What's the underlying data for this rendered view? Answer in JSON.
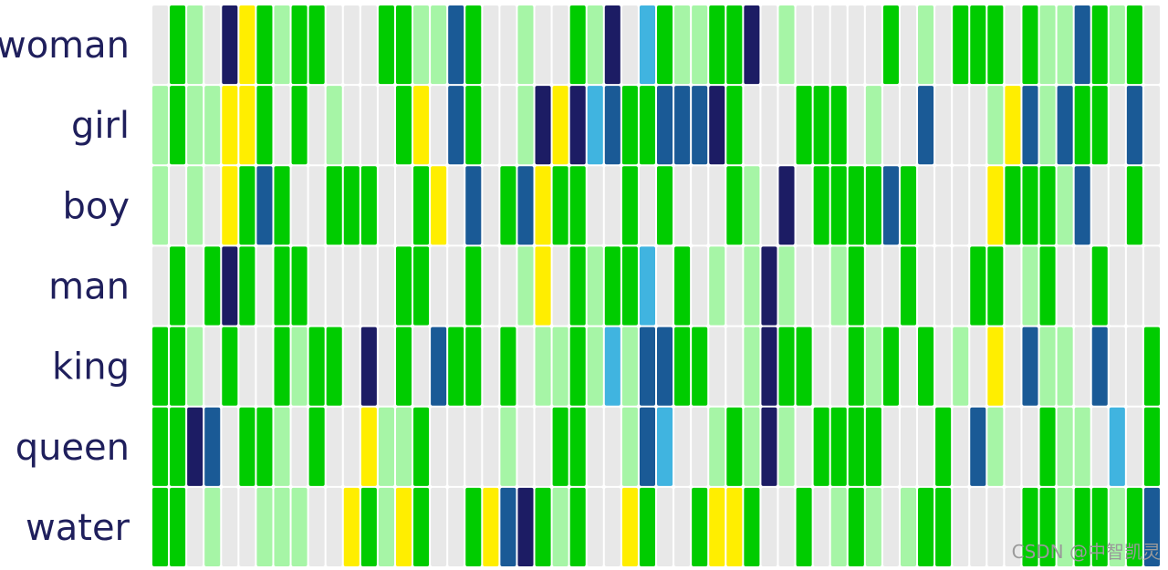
{
  "chart_data": {
    "type": "heatmap",
    "title": "",
    "xlabel": "",
    "ylabel": "",
    "rows": [
      "woman",
      "girl",
      "boy",
      "man",
      "king",
      "queen",
      "water"
    ],
    "value_scale": {
      "0": "#e8e8e8",
      "1": "#a6f5a6",
      "2": "#00cc00",
      "3": "#ffee00",
      "4": "#40b4e0",
      "5": "#1a5a96",
      "6": "#1c1c64"
    },
    "matrix": [
      "0210632122000221152001002160421122601000002010222021152120",
      "1211332020100023052001636452255562000222010050001351522050",
      "1010325200222002305025322002020002106022225200003222150020",
      "0202620220000022002001302122402010161001200200022012002000",
      "2210200212206020522020112141552200162200212020103051105002",
      "2265022102003112000010022001540012161022220002051002110402",
      "2201001110032132002356212003200233200201210122000022122125"
    ]
  },
  "watermark": "CSDN @中智凯灵"
}
